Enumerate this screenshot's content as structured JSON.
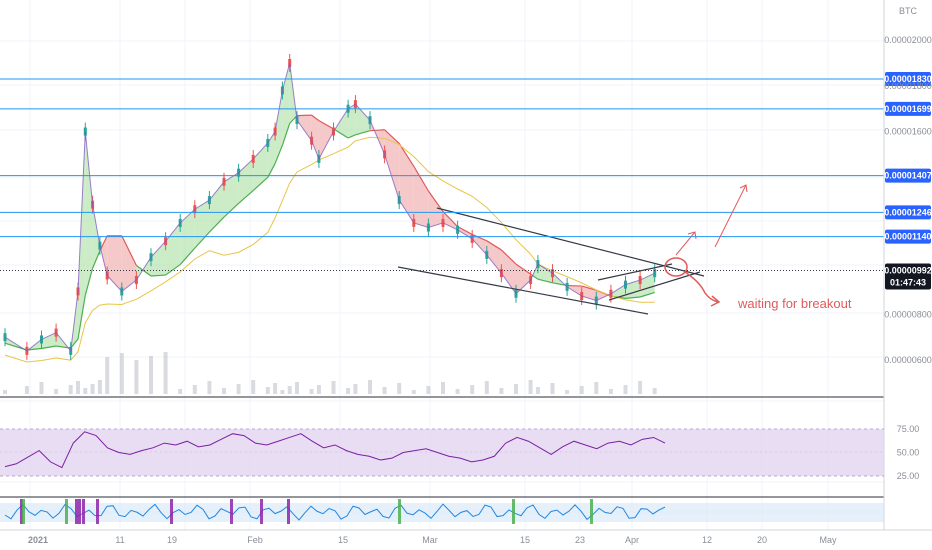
{
  "chart_data": {
    "type": "line",
    "currency_label": "BTC",
    "price_axis_ticks": [
      "0.00002000",
      "0.00001800",
      "0.00001600",
      "0.00000800",
      "0.00000600"
    ],
    "time_axis_ticks": [
      "2021",
      "11",
      "19",
      "Feb",
      "15",
      "Mar",
      "15",
      "23",
      "Apr",
      "12",
      "20",
      "May"
    ],
    "horizontal_levels": [
      "0.00001830",
      "0.00001699",
      "0.00001407",
      "0.00001246",
      "0.00001140"
    ],
    "current_price": "0.00000992",
    "countdown": "01:47:43",
    "annotation": "waiting for breakout",
    "rsi_ticks": [
      "75.00",
      "50.00",
      "25.00"
    ],
    "price_series": [
      {
        "t": 0,
        "p": 7e-06
      },
      {
        "t": 3,
        "p": 6.4e-06
      },
      {
        "t": 5,
        "p": 6.9e-06
      },
      {
        "t": 7,
        "p": 7.2e-06
      },
      {
        "t": 9,
        "p": 6.4e-06
      },
      {
        "t": 10,
        "p": 9e-06
      },
      {
        "t": 11,
        "p": 1.6e-05
      },
      {
        "t": 12,
        "p": 1.28e-05
      },
      {
        "t": 13,
        "p": 1.1e-05
      },
      {
        "t": 14,
        "p": 9.7e-06
      },
      {
        "t": 16,
        "p": 9e-06
      },
      {
        "t": 18,
        "p": 9.5e-06
      },
      {
        "t": 20,
        "p": 1.05e-05
      },
      {
        "t": 22,
        "p": 1.12e-05
      },
      {
        "t": 24,
        "p": 1.2e-05
      },
      {
        "t": 26,
        "p": 1.26e-05
      },
      {
        "t": 28,
        "p": 1.3e-05
      },
      {
        "t": 30,
        "p": 1.38e-05
      },
      {
        "t": 32,
        "p": 1.42e-05
      },
      {
        "t": 34,
        "p": 1.48e-05
      },
      {
        "t": 36,
        "p": 1.55e-05
      },
      {
        "t": 37,
        "p": 1.6e-05
      },
      {
        "t": 38,
        "p": 1.78e-05
      },
      {
        "t": 39,
        "p": 1.9e-05
      },
      {
        "t": 40,
        "p": 1.65e-05
      },
      {
        "t": 42,
        "p": 1.56e-05
      },
      {
        "t": 43,
        "p": 1.48e-05
      },
      {
        "t": 45,
        "p": 1.6e-05
      },
      {
        "t": 47,
        "p": 1.7e-05
      },
      {
        "t": 48,
        "p": 1.72e-05
      },
      {
        "t": 50,
        "p": 1.65e-05
      },
      {
        "t": 52,
        "p": 1.5e-05
      },
      {
        "t": 54,
        "p": 1.3e-05
      },
      {
        "t": 56,
        "p": 1.2e-05
      },
      {
        "t": 58,
        "p": 1.18e-05
      },
      {
        "t": 60,
        "p": 1.2e-05
      },
      {
        "t": 62,
        "p": 1.17e-05
      },
      {
        "t": 64,
        "p": 1.13e-05
      },
      {
        "t": 66,
        "p": 1.06e-05
      },
      {
        "t": 68,
        "p": 9.8e-06
      },
      {
        "t": 70,
        "p": 8.9e-06
      },
      {
        "t": 72,
        "p": 9.5e-06
      },
      {
        "t": 73,
        "p": 1.02e-05
      },
      {
        "t": 75,
        "p": 9.8e-06
      },
      {
        "t": 77,
        "p": 9.2e-06
      },
      {
        "t": 79,
        "p": 8.8e-06
      },
      {
        "t": 81,
        "p": 8.6e-06
      },
      {
        "t": 83,
        "p": 8.9e-06
      },
      {
        "t": 85,
        "p": 9.3e-06
      },
      {
        "t": 87,
        "p": 9.5e-06
      },
      {
        "t": 89,
        "p": 9.8e-06
      }
    ],
    "rsi_series": [
      35,
      38,
      45,
      52,
      40,
      34,
      60,
      72,
      68,
      55,
      50,
      48,
      52,
      55,
      60,
      58,
      62,
      56,
      58,
      64,
      70,
      68,
      60,
      58,
      62,
      66,
      70,
      62,
      55,
      58,
      52,
      48,
      46,
      42,
      44,
      50,
      52,
      54,
      50,
      46,
      44,
      40,
      42,
      46,
      60,
      66,
      62,
      55,
      48,
      56,
      62,
      58,
      54,
      60,
      62,
      58,
      64,
      66,
      60
    ],
    "price_axis_scale": "linear",
    "grid": "on"
  }
}
